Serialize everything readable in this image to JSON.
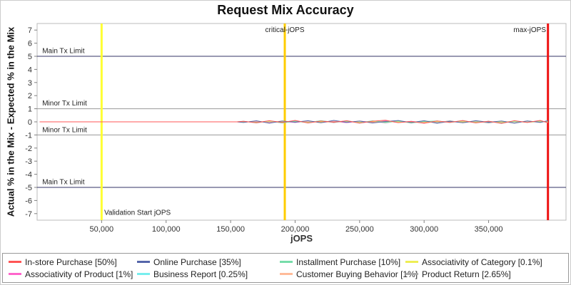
{
  "chart_data": {
    "type": "line",
    "title": "Request Mix Accuracy",
    "xlabel": "jOPS",
    "ylabel": "Actual % in the Mix - Expected % in the Mix",
    "xlim": [
      0,
      410000
    ],
    "ylim": [
      -7.5,
      7.5
    ],
    "x_ticks": [
      50000,
      100000,
      150000,
      200000,
      250000,
      300000,
      350000
    ],
    "y_ticks": [
      -7,
      -6,
      -5,
      -4,
      -3,
      -2,
      -1,
      0,
      1,
      2,
      3,
      4,
      5,
      6,
      7
    ],
    "grid": false,
    "legend_position": "bottom",
    "plot_border_color": "#bbbbbb",
    "reference_lines": {
      "horizontal": [
        {
          "y": 5,
          "color": "#333366",
          "name": "main-tx-limit-upper-line"
        },
        {
          "y": 1,
          "color": "#999999",
          "name": "minor-tx-limit-upper-line"
        },
        {
          "y": -1,
          "color": "#999999",
          "name": "minor-tx-limit-lower-line"
        },
        {
          "y": -5,
          "color": "#333366",
          "name": "main-tx-limit-lower-line"
        }
      ],
      "vertical": [
        {
          "x": 50000,
          "color": "#ffff33",
          "width": 3,
          "name": "validation-start-line"
        },
        {
          "x": 192000,
          "color": "#ffcc00",
          "width": 3,
          "name": "critical-jops-line"
        },
        {
          "x": 396000,
          "color": "#ee1111",
          "width": 3,
          "name": "max-jops-line"
        }
      ]
    },
    "annotations": [
      {
        "text": "Main Tx Limit",
        "x": 4000,
        "y": 5.25,
        "align": "start"
      },
      {
        "text": "Minor Tx Limit",
        "x": 4000,
        "y": 1.25,
        "align": "start"
      },
      {
        "text": "Minor Tx Limit",
        "x": 4000,
        "y": -0.8,
        "align": "start"
      },
      {
        "text": "Main Tx Limit",
        "x": 4000,
        "y": -4.75,
        "align": "start"
      },
      {
        "text": "Validation Start jOPS",
        "x": 52000,
        "y": -7.1,
        "align": "start"
      },
      {
        "text": "critical-jOPS",
        "x": 192000,
        "y": 6.85,
        "align": "middle"
      },
      {
        "text": "max-jOPS",
        "x": 394500,
        "y": 6.85,
        "align": "end"
      }
    ],
    "x": [
      2000,
      155000,
      160000,
      170000,
      180000,
      190000,
      200000,
      210000,
      220000,
      230000,
      240000,
      250000,
      260000,
      270000,
      280000,
      290000,
      300000,
      310000,
      320000,
      330000,
      340000,
      350000,
      360000,
      370000,
      380000,
      390000,
      396000
    ],
    "series": [
      {
        "name": "In-store Purchase [50%]",
        "color": "#ff5555",
        "values": [
          0,
          0,
          0.04,
          -0.07,
          0.09,
          -0.05,
          0.11,
          -0.09,
          0.06,
          -0.03,
          0.08,
          -0.1,
          0.05,
          0.12,
          -0.06,
          0.03,
          -0.11,
          0.07,
          -0.04,
          0.1,
          -0.08,
          0.05,
          -0.12,
          0.09,
          -0.05,
          0.11,
          -0.07
        ]
      },
      {
        "name": "Online Purchase [35%]",
        "color": "#5566aa",
        "values": [
          0,
          0,
          -0.05,
          0.08,
          -0.1,
          0.06,
          -0.03,
          0.09,
          -0.07,
          0.11,
          -0.04,
          0.06,
          -0.09,
          0.03,
          0.1,
          -0.06,
          0.08,
          -0.11,
          0.04,
          -0.07,
          0.09,
          -0.03,
          0.06,
          -0.1,
          0.07,
          -0.04,
          0.08
        ]
      },
      {
        "name": "Installment Purchase [10%]",
        "color": "#77ddaa",
        "values": [
          0,
          0,
          0.03,
          -0.05,
          0.07,
          -0.08,
          0.04,
          -0.06,
          0.09,
          -0.03,
          0.05,
          -0.07,
          0.08,
          -0.04,
          0.06,
          -0.09,
          0.03,
          0.07,
          -0.05,
          0.08,
          -0.06,
          0.04,
          -0.08,
          0.05,
          -0.03,
          0.07,
          -0.05
        ]
      },
      {
        "name": "Associativity of Category [0.1%]",
        "color": "#eeee55",
        "values": [
          0,
          0,
          0.01,
          -0.02,
          0.02,
          -0.01,
          0.02,
          -0.02,
          0.01,
          -0.01,
          0.02,
          -0.02,
          0.01,
          0.02,
          -0.01,
          0.01,
          -0.02,
          0.02,
          -0.01,
          0.01,
          -0.02,
          0.01,
          -0.01,
          0.02,
          -0.02,
          0.01,
          -0.01
        ]
      },
      {
        "name": "Associativity of Product [1%]",
        "color": "#ff66cc",
        "values": [
          0,
          0,
          -0.03,
          0.05,
          -0.06,
          0.04,
          -0.05,
          0.06,
          -0.04,
          0.03,
          -0.06,
          0.05,
          -0.03,
          0.06,
          -0.05,
          0.04,
          -0.06,
          0.03,
          -0.04,
          0.06,
          -0.05,
          0.03,
          -0.06,
          0.04,
          -0.03,
          0.05,
          -0.04
        ]
      },
      {
        "name": "Business Report [0.25%]",
        "color": "#77eeee",
        "values": [
          0,
          0,
          0.02,
          -0.03,
          0.03,
          -0.02,
          0.03,
          -0.03,
          0.02,
          -0.02,
          0.03,
          -0.03,
          0.02,
          0.03,
          -0.02,
          0.02,
          -0.03,
          0.03,
          -0.02,
          0.02,
          -0.03,
          0.02,
          -0.02,
          0.03,
          -0.03,
          0.02,
          -0.02
        ]
      },
      {
        "name": "Customer Buying Behavior [1%]",
        "color": "#ffbb99",
        "values": [
          0,
          0,
          -0.04,
          0.06,
          -0.05,
          0.07,
          -0.04,
          0.05,
          -0.07,
          0.04,
          -0.05,
          0.06,
          -0.04,
          0.07,
          -0.05,
          0.04,
          -0.06,
          0.05,
          -0.04,
          0.07,
          -0.05,
          0.04,
          -0.07,
          0.05,
          -0.04,
          0.06,
          -0.05
        ]
      },
      {
        "name": "Product Return [2.65%]",
        "color": "#aaaaaa",
        "values": [
          0,
          0,
          0.05,
          -0.08,
          0.06,
          -0.09,
          0.07,
          -0.05,
          0.08,
          -0.06,
          0.09,
          -0.07,
          0.05,
          -0.08,
          0.07,
          -0.05,
          0.09,
          -0.06,
          0.08,
          -0.07,
          0.05,
          -0.09,
          0.06,
          -0.08,
          0.07,
          -0.05,
          0.08
        ]
      }
    ]
  }
}
